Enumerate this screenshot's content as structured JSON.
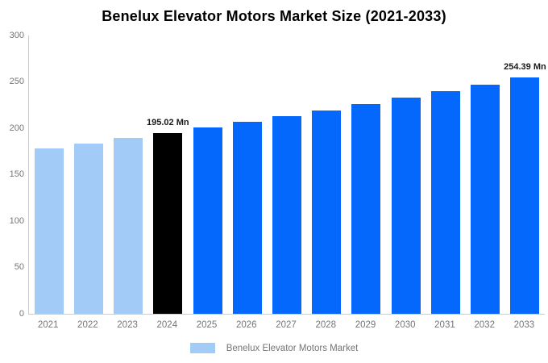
{
  "title": "Benelux Elevator Motors Market Size (2021-2033)",
  "legend": {
    "label": "Benelux Elevator Motors Market",
    "swatch_color": "#a3cbf8"
  },
  "palette": {
    "historical": "#a3cbf8",
    "current": "#000000",
    "forecast": "#0568fd",
    "axis_line": "#cccccc",
    "axis_text": "#757575",
    "value_label_text": "#1a1a1a"
  },
  "chart_data": {
    "type": "bar",
    "title": "Benelux Elevator Motors Market Size (2021-2033)",
    "xlabel": "",
    "ylabel": "",
    "ylim": [
      0,
      300
    ],
    "yticks": [
      300,
      250,
      200,
      150,
      100,
      50,
      0
    ],
    "grid": false,
    "legend_position": "bottom",
    "categories": [
      "2021",
      "2022",
      "2023",
      "2024",
      "2025",
      "2026",
      "2027",
      "2028",
      "2029",
      "2030",
      "2031",
      "2032",
      "2033"
    ],
    "series": [
      {
        "name": "Benelux Elevator Motors Market",
        "values": [
          178.5,
          183.8,
          189.3,
          195.02,
          200.9,
          206.9,
          213.1,
          219.5,
          226.1,
          232.9,
          239.8,
          247.0,
          254.39
        ]
      }
    ],
    "point_color_keys": [
      "historical",
      "historical",
      "historical",
      "current",
      "forecast",
      "forecast",
      "forecast",
      "forecast",
      "forecast",
      "forecast",
      "forecast",
      "forecast",
      "forecast"
    ],
    "annotations": [
      {
        "category": "2024",
        "text": "195.02 Mn"
      },
      {
        "category": "2033",
        "text": "254.39 Mn"
      }
    ],
    "units": "Mn"
  }
}
